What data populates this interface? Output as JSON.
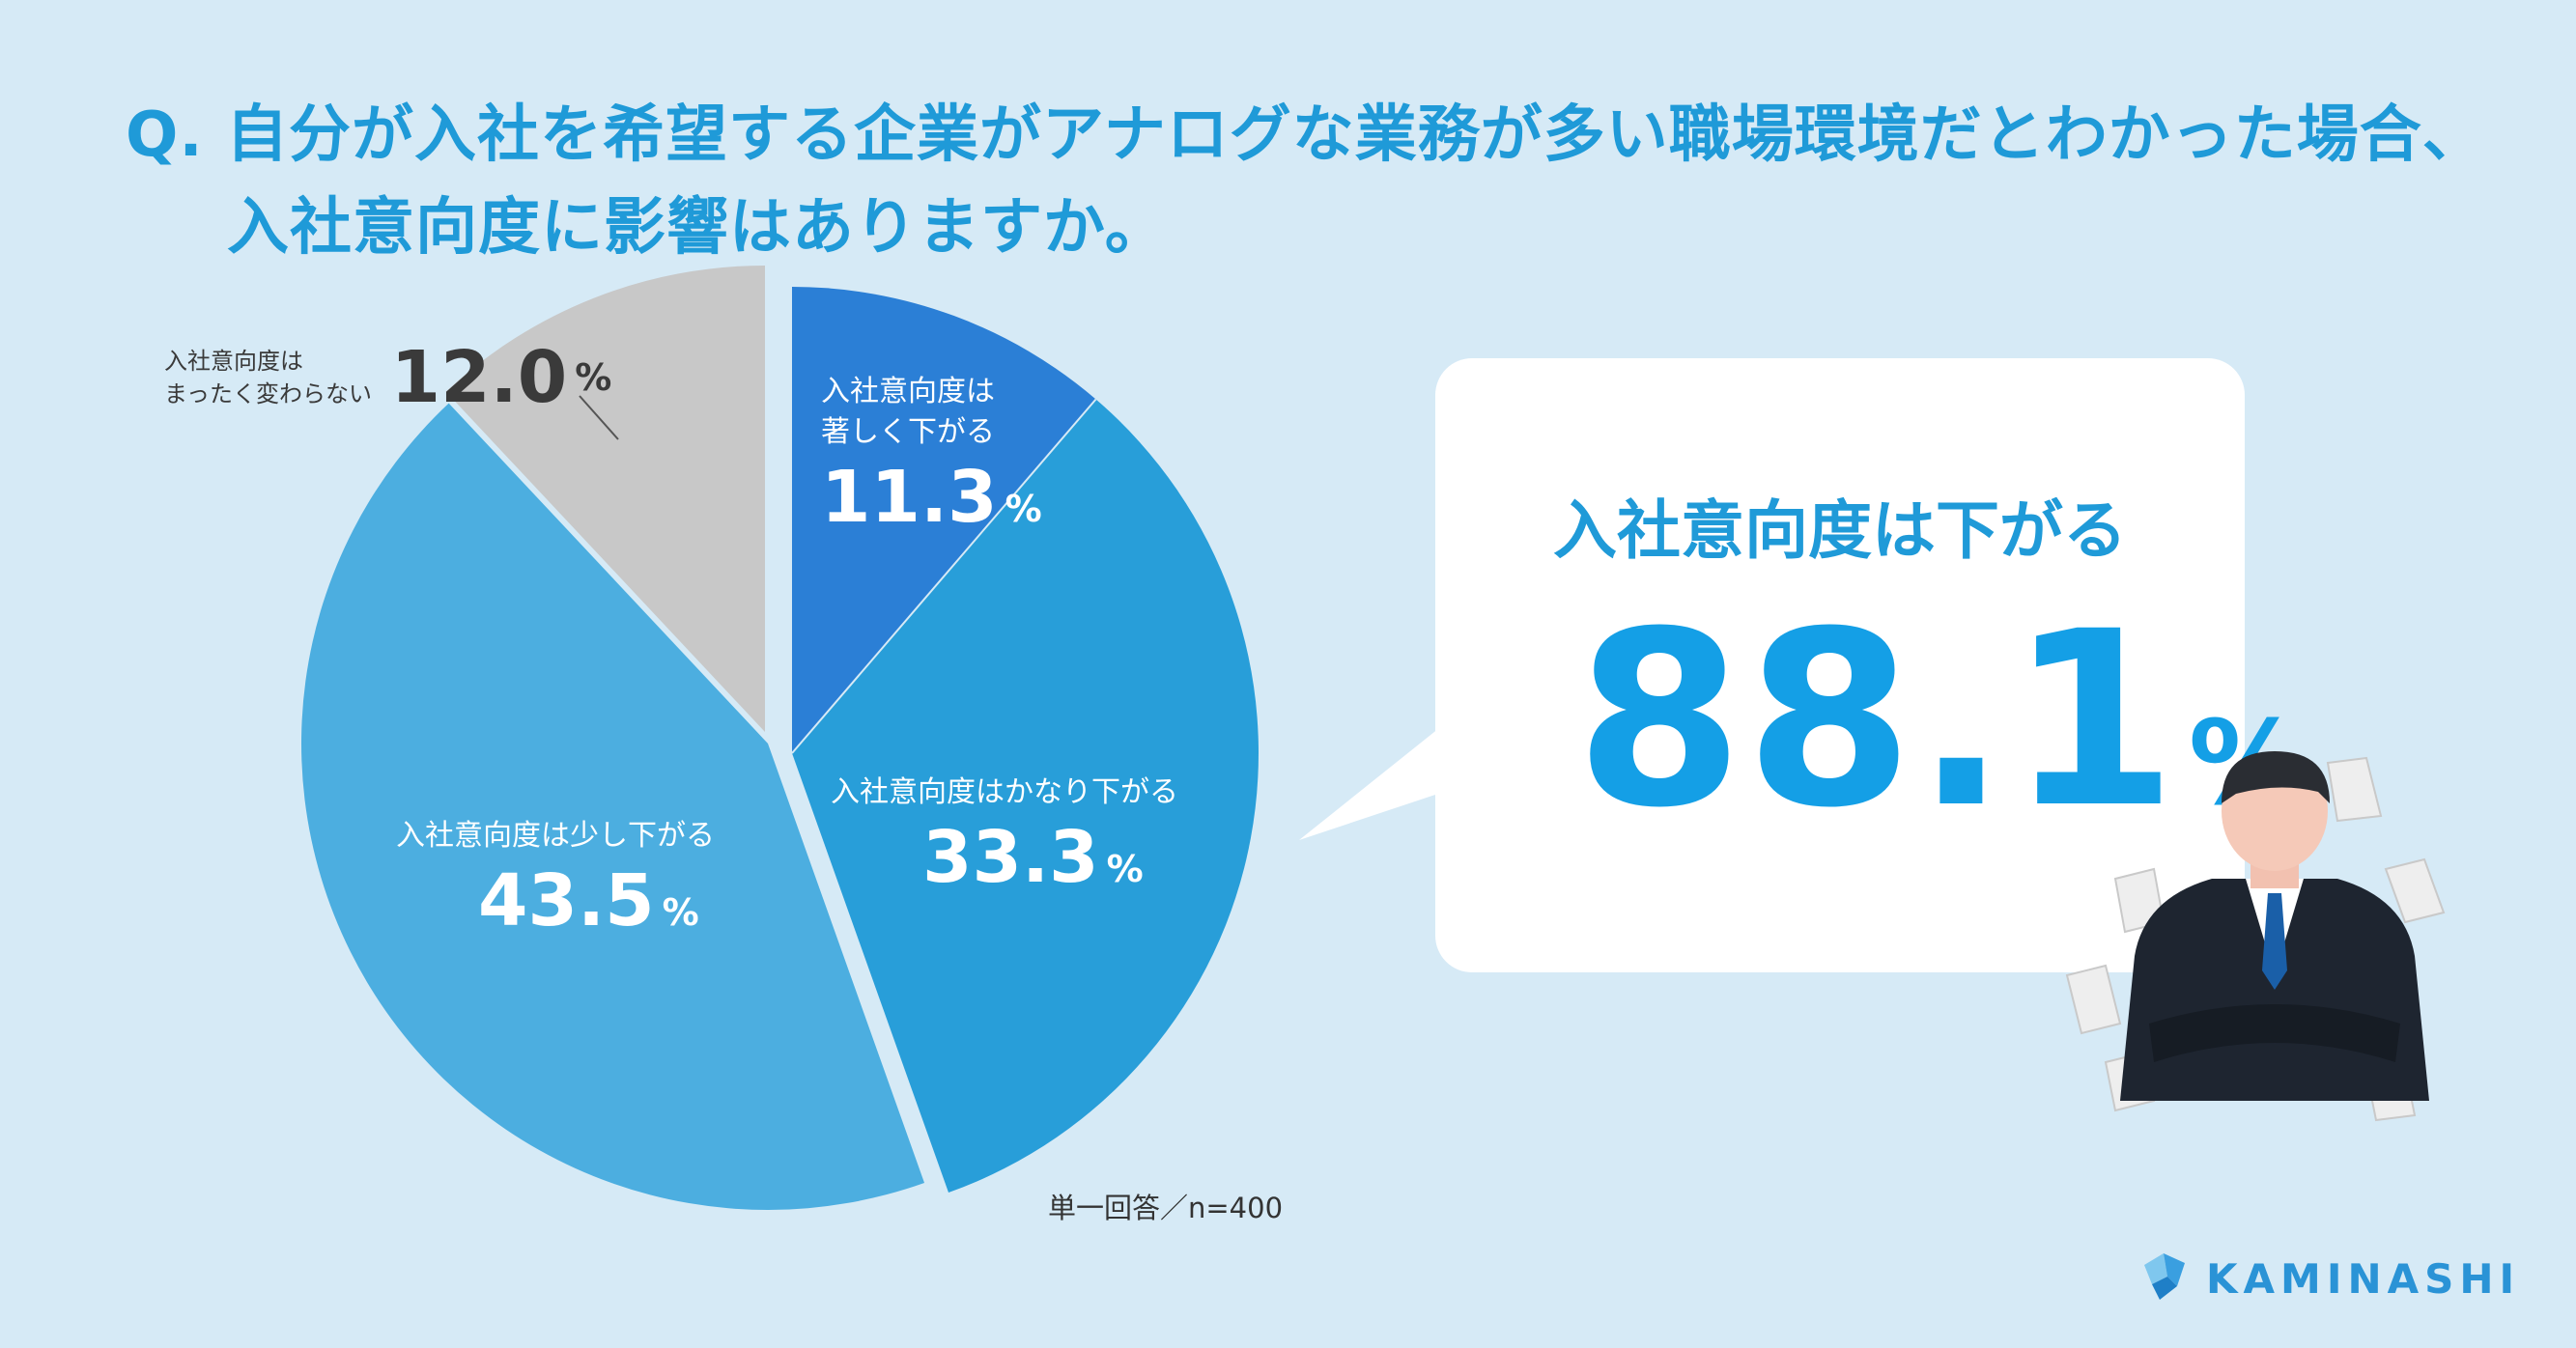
{
  "question": {
    "line1": "Q. 自分が入社を希望する企業がアナログな業務が多い職場環境だとわかった場合、",
    "line2": "入社意向度に影響はありますか。"
  },
  "colors": {
    "background": "#d6eaf6",
    "title": "#1f9ad8",
    "highlight_big": "#149fe6"
  },
  "chart_data": {
    "type": "pie",
    "unit": "%",
    "slices": [
      {
        "label": "入社意向度は著しく下がる",
        "label_line1": "入社意向度は",
        "label_line2": "著しく下がる",
        "value": 11.3,
        "value_text": "11.3",
        "color": "#2b7fd6"
      },
      {
        "label": "入社意向度はかなり下がる",
        "value": 33.3,
        "value_text": "33.3",
        "color": "#289ed9"
      },
      {
        "label": "入社意向度は少し下がる",
        "value": 43.5,
        "value_text": "43.5",
        "color": "#4caee0"
      },
      {
        "label": "入社意向度はまったく変わらない",
        "label_line1": "入社意向度は",
        "label_line2": "まったく変わらない",
        "value": 12.0,
        "value_text": "12.0",
        "color": "#c8c8c8"
      }
    ],
    "exploded": [
      "入社意向度は少し下がる",
      "入社意向度はまったく変わらない"
    ],
    "note": "単一回答／n=400"
  },
  "callout": {
    "heading": "入社意向度は下がる",
    "value": "88.1",
    "unit": "%"
  },
  "icons": {
    "person": "businessman-arms-crossed-icon",
    "papers": "flying-papers-icon",
    "logo": "kaminashi-logo-icon"
  },
  "logo": {
    "text": "KAMINASHI"
  }
}
